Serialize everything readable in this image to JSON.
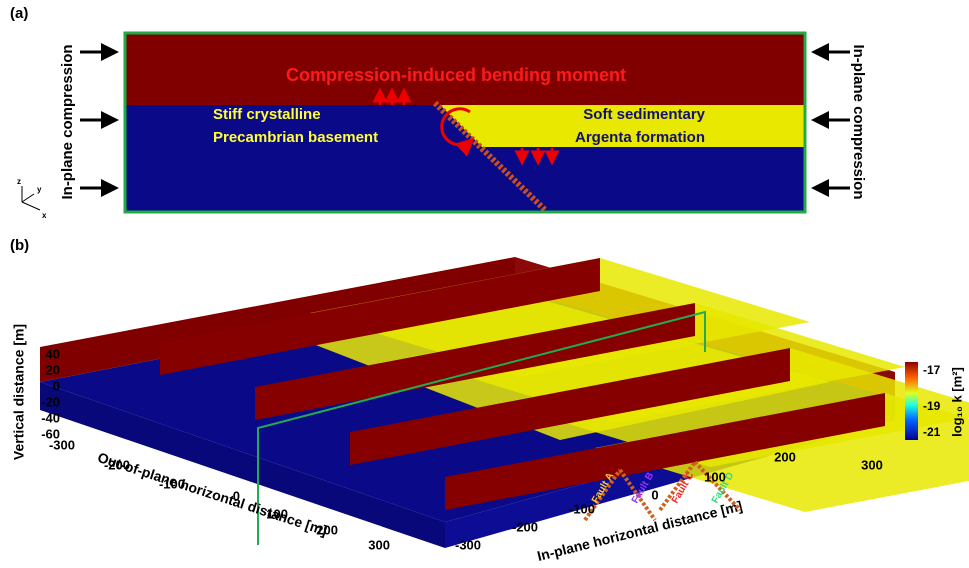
{
  "panel_a": {
    "label": "(a)",
    "left_label": "In-plane compression",
    "right_label": "In-plane compression",
    "top_text": "Compression-induced bending  moment",
    "left_text": [
      "Stiff crystalline",
      "Precambrian basement"
    ],
    "right_text": [
      "Soft sedimentary",
      "Argenta formation"
    ],
    "axes": [
      "z",
      "y",
      "x"
    ]
  },
  "panel_b": {
    "label": "(b)",
    "z_axis_label": "Vertical distance [m]",
    "z_ticks": [
      40,
      20,
      0,
      -20,
      -40,
      -60
    ],
    "x_axis_label": "Out-of-plane horizontal distance [m]",
    "x_ticks": [
      -300,
      -200,
      -100,
      0,
      100,
      200,
      300
    ],
    "y_axis_label": "In-plane horizontal distance [m]",
    "y_ticks": [
      -300,
      -200,
      -100,
      0,
      100,
      200,
      300
    ],
    "faults": [
      "Fault A",
      "Fault B",
      "Fault C",
      "Fault D"
    ],
    "colorbar": {
      "label": "log₁₀ k [m²]",
      "ticks": [
        -17,
        -19,
        -21
      ]
    }
  }
}
